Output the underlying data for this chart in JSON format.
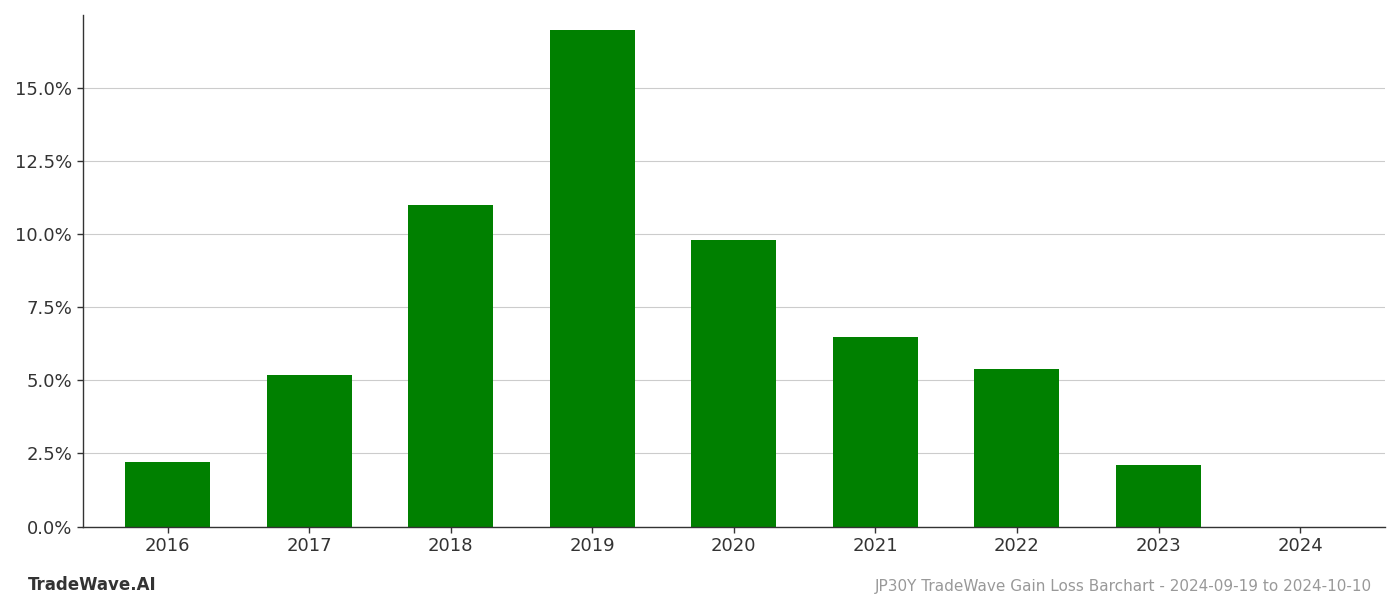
{
  "categories": [
    "2016",
    "2017",
    "2018",
    "2019",
    "2020",
    "2021",
    "2022",
    "2023",
    "2024"
  ],
  "values": [
    0.022,
    0.052,
    0.11,
    0.17,
    0.098,
    0.065,
    0.054,
    0.021,
    0.0
  ],
  "bar_color": "#008000",
  "background_color": "#ffffff",
  "grid_color": "#cccccc",
  "spine_color": "#333333",
  "title": "JP30Y TradeWave Gain Loss Barchart - 2024-09-19 to 2024-10-10",
  "footer_left": "TradeWave.AI",
  "ylim": [
    0,
    0.175
  ],
  "yticks": [
    0.0,
    0.025,
    0.05,
    0.075,
    0.1,
    0.125,
    0.15
  ],
  "ytick_labels": [
    "0.0%",
    "2.5%",
    "5.0%",
    "7.5%",
    "10.0%",
    "12.5%",
    "15.0%"
  ],
  "tick_label_color": "#999999",
  "title_color": "#999999",
  "footer_color": "#333333",
  "title_fontsize": 11,
  "tick_fontsize": 13,
  "footer_fontsize": 12
}
